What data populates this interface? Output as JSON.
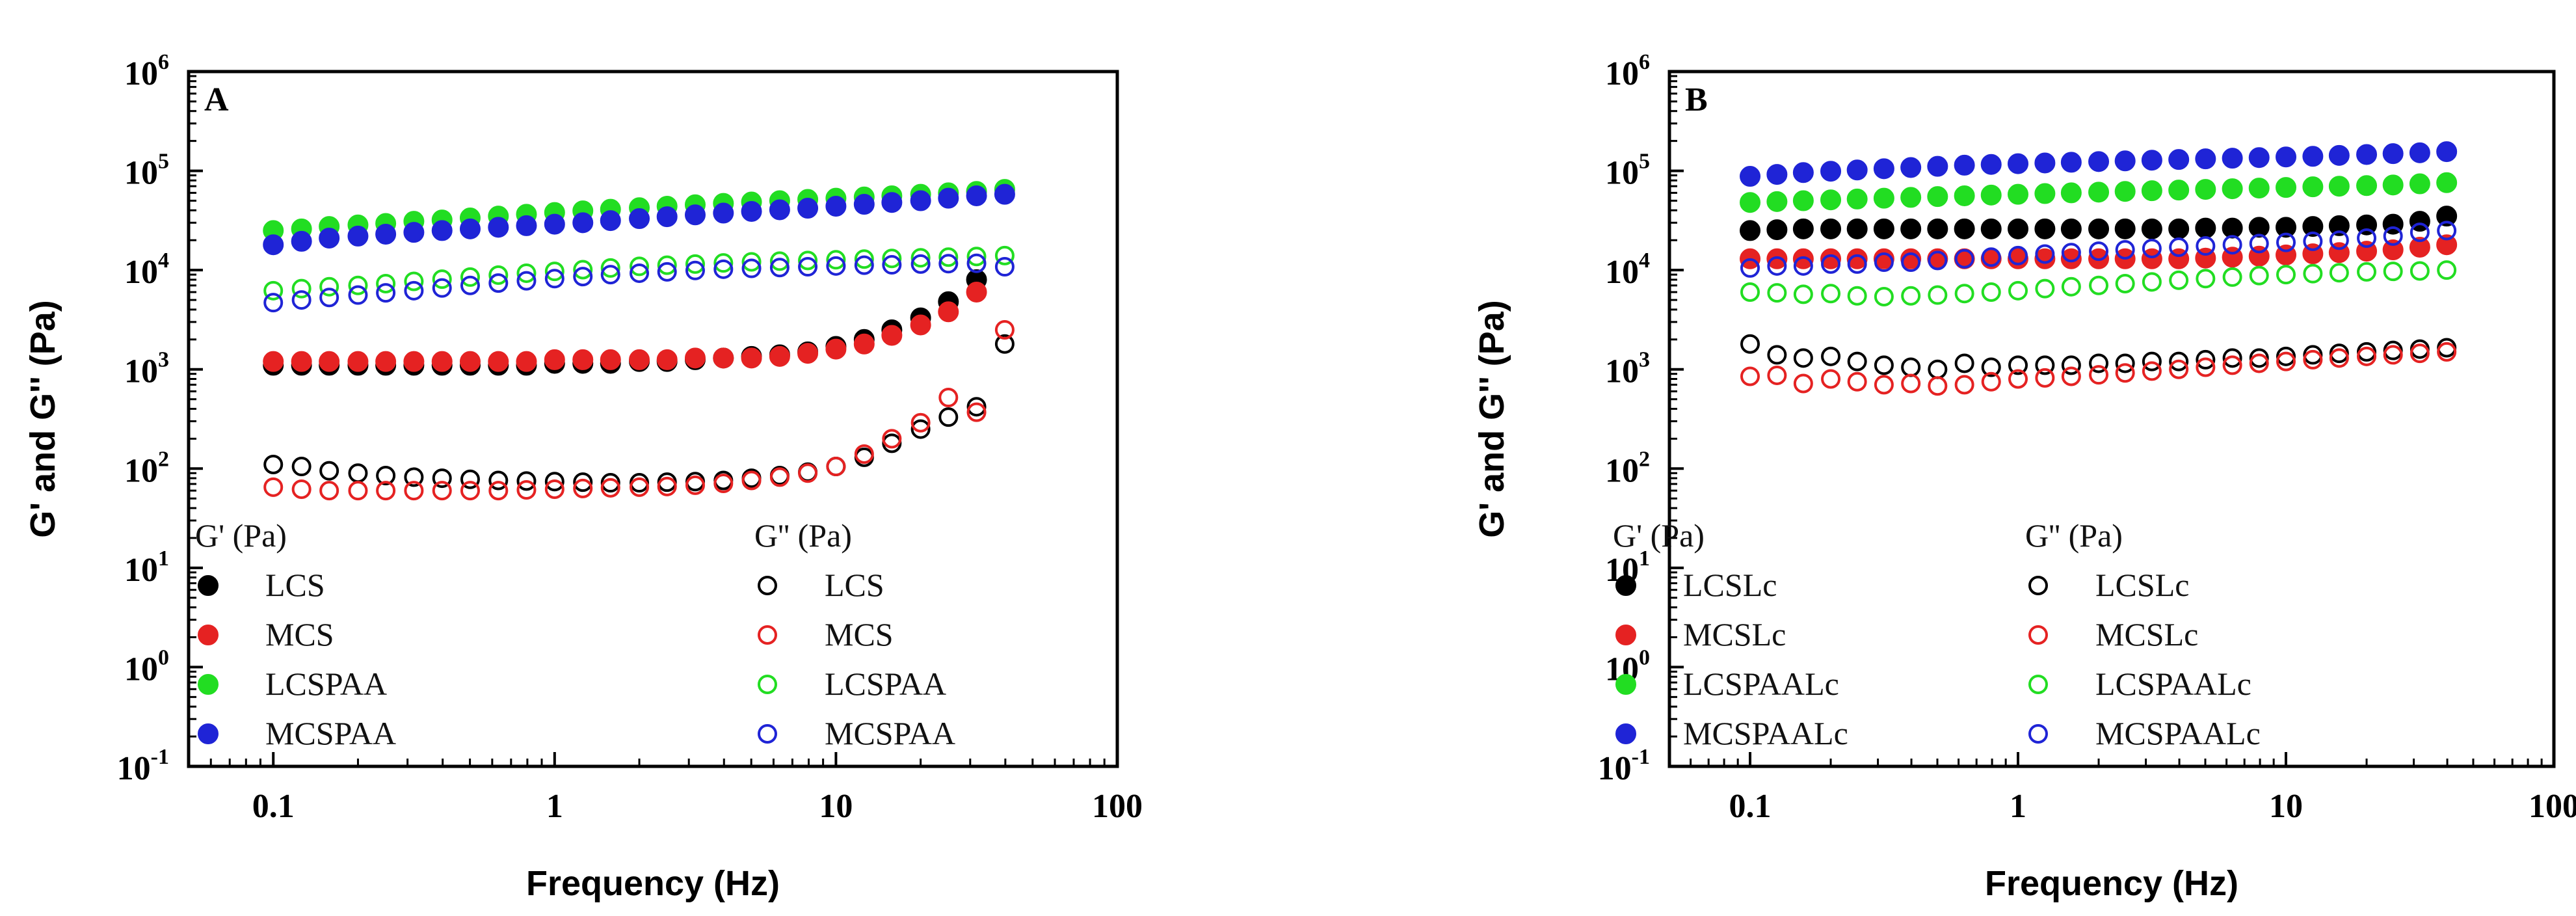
{
  "chart_data": [
    {
      "type": "scatter",
      "panel_label": "A",
      "xlabel": "Frequency (Hz)",
      "ylabel": "G' and G'' (Pa)",
      "xscale": "log",
      "yscale": "log",
      "xlim": [
        0.05,
        100
      ],
      "ylim": [
        0.1,
        1000000
      ],
      "x_ticks": [
        "0.1",
        "1",
        "10",
        "100"
      ],
      "y_ticks": [
        {
          "base": "10",
          "exp": "-1"
        },
        {
          "base": "10",
          "exp": "0"
        },
        {
          "base": "10",
          "exp": "1"
        },
        {
          "base": "10",
          "exp": "2"
        },
        {
          "base": "10",
          "exp": "3"
        },
        {
          "base": "10",
          "exp": "4"
        },
        {
          "base": "10",
          "exp": "5"
        },
        {
          "base": "10",
          "exp": "6"
        }
      ],
      "legend": {
        "position": "bottom-left",
        "header_filled": "G' (Pa)",
        "header_open": "G'' (Pa)"
      },
      "x": [
        0.1,
        0.126,
        0.158,
        0.2,
        0.251,
        0.316,
        0.398,
        0.501,
        0.631,
        0.794,
        1,
        1.26,
        1.58,
        2,
        2.51,
        3.16,
        3.98,
        5.01,
        6.31,
        7.94,
        10,
        12.6,
        15.8,
        20,
        25.1,
        31.6,
        39.8
      ],
      "series": [
        {
          "name": "LCS",
          "modulus": "G'",
          "filled": true,
          "color": "#000000",
          "values": [
            1100,
            1100,
            1100,
            1100,
            1100,
            1100,
            1100,
            1100,
            1100,
            1100,
            1150,
            1150,
            1150,
            1200,
            1200,
            1250,
            1300,
            1350,
            1400,
            1500,
            1700,
            2000,
            2500,
            3300,
            4800,
            8000,
            null
          ]
        },
        {
          "name": "MCS",
          "modulus": "G'",
          "filled": true,
          "color": "#e52222",
          "values": [
            1200,
            1200,
            1200,
            1200,
            1200,
            1200,
            1200,
            1200,
            1200,
            1200,
            1250,
            1250,
            1250,
            1250,
            1250,
            1300,
            1300,
            1300,
            1350,
            1450,
            1600,
            1800,
            2200,
            2800,
            3800,
            6000,
            null
          ]
        },
        {
          "name": "LCSPAA",
          "modulus": "G'",
          "filled": true,
          "color": "#22dd22",
          "values": [
            25000,
            26000,
            27500,
            28500,
            29500,
            31000,
            32000,
            33500,
            35000,
            36500,
            38000,
            39500,
            41000,
            42500,
            44000,
            45500,
            47000,
            48500,
            50000,
            51500,
            53000,
            54500,
            56000,
            58000,
            60000,
            62000,
            65000
          ]
        },
        {
          "name": "MCSPAA",
          "modulus": "G'",
          "filled": true,
          "color": "#1f24d6",
          "values": [
            18000,
            19500,
            21000,
            22000,
            23000,
            24000,
            25000,
            26000,
            27000,
            28000,
            29000,
            30000,
            31500,
            33000,
            34500,
            36000,
            37500,
            39000,
            40500,
            42000,
            44000,
            46000,
            48000,
            50000,
            53000,
            56000,
            58000
          ]
        },
        {
          "name": "LCS",
          "modulus": "G''",
          "filled": false,
          "color": "#000000",
          "values": [
            110,
            105,
            95,
            90,
            85,
            82,
            80,
            78,
            76,
            75,
            74,
            73,
            72,
            72,
            73,
            74,
            76,
            80,
            85,
            92,
            105,
            130,
            180,
            250,
            330,
            420,
            1800
          ]
        },
        {
          "name": "MCS",
          "modulus": "G''",
          "filled": false,
          "color": "#e52222",
          "values": [
            65,
            62,
            60,
            60,
            60,
            60,
            60,
            60,
            60,
            61,
            62,
            63,
            64,
            65,
            66,
            68,
            71,
            76,
            82,
            90,
            105,
            140,
            200,
            290,
            520,
            370,
            2500
          ]
        },
        {
          "name": "LCSPAA",
          "modulus": "G''",
          "filled": false,
          "color": "#22dd22",
          "values": [
            6200,
            6500,
            6800,
            7000,
            7300,
            7700,
            8100,
            8500,
            8900,
            9300,
            9700,
            10100,
            10500,
            10900,
            11200,
            11500,
            11800,
            12100,
            12300,
            12500,
            12700,
            12900,
            13100,
            13300,
            13500,
            13700,
            14000
          ]
        },
        {
          "name": "MCSPAA",
          "modulus": "G''",
          "filled": false,
          "color": "#1f24d6",
          "values": [
            4700,
            5000,
            5300,
            5600,
            5900,
            6200,
            6600,
            7000,
            7400,
            7800,
            8200,
            8600,
            9000,
            9300,
            9600,
            9900,
            10200,
            10400,
            10600,
            10800,
            11000,
            11200,
            11300,
            11500,
            11600,
            11700,
            10800
          ]
        }
      ]
    },
    {
      "type": "scatter",
      "panel_label": "B",
      "xlabel": "Frequency (Hz)",
      "ylabel": "G' and G'' (Pa)",
      "xscale": "log",
      "yscale": "log",
      "xlim": [
        0.05,
        100
      ],
      "ylim": [
        0.1,
        1000000
      ],
      "x_ticks": [
        "0.1",
        "1",
        "10",
        "100"
      ],
      "y_ticks": [
        {
          "base": "10",
          "exp": "-1"
        },
        {
          "base": "10",
          "exp": "0"
        },
        {
          "base": "10",
          "exp": "1"
        },
        {
          "base": "10",
          "exp": "2"
        },
        {
          "base": "10",
          "exp": "3"
        },
        {
          "base": "10",
          "exp": "4"
        },
        {
          "base": "10",
          "exp": "5"
        },
        {
          "base": "10",
          "exp": "6"
        }
      ],
      "legend": {
        "position": "bottom-left",
        "header_filled": "G' (Pa)",
        "header_open": "G'' (Pa)"
      },
      "x": [
        0.1,
        0.126,
        0.158,
        0.2,
        0.251,
        0.316,
        0.398,
        0.501,
        0.631,
        0.794,
        1,
        1.26,
        1.58,
        2,
        2.51,
        3.16,
        3.98,
        5.01,
        6.31,
        7.94,
        10,
        12.6,
        15.8,
        20,
        25.1,
        31.6,
        39.8
      ],
      "series": [
        {
          "name": "LCSLc",
          "modulus": "G'",
          "filled": true,
          "color": "#000000",
          "values": [
            25000,
            25500,
            26000,
            26000,
            26000,
            26000,
            26000,
            26000,
            26000,
            26000,
            26000,
            26000,
            26000,
            26000,
            26000,
            26000,
            26000,
            26500,
            26500,
            27000,
            27000,
            27500,
            28000,
            28500,
            29000,
            31000,
            35000
          ]
        },
        {
          "name": "MCSLc",
          "modulus": "G'",
          "filled": true,
          "color": "#e52222",
          "values": [
            13000,
            13000,
            13000,
            13000,
            13000,
            13000,
            13000,
            13000,
            13000,
            13000,
            13000,
            13000,
            13000,
            13000,
            13000,
            13000,
            13000,
            13200,
            13500,
            13800,
            14200,
            14600,
            15000,
            15500,
            16000,
            17000,
            18000
          ]
        },
        {
          "name": "LCSPAALc",
          "modulus": "G'",
          "filled": true,
          "color": "#22dd22",
          "values": [
            48000,
            49000,
            50000,
            51000,
            52000,
            53000,
            54000,
            55000,
            56000,
            57000,
            58000,
            59000,
            60000,
            61000,
            62000,
            63000,
            64000,
            65000,
            66000,
            67000,
            68000,
            69000,
            70000,
            71000,
            72000,
            74000,
            76000
          ]
        },
        {
          "name": "MCSPAALc",
          "modulus": "G'",
          "filled": true,
          "color": "#1f24d6",
          "values": [
            88000,
            92000,
            96000,
            99000,
            102000,
            105000,
            108000,
            111000,
            114000,
            116000,
            118000,
            120000,
            122000,
            124000,
            126000,
            128000,
            130000,
            132000,
            134000,
            136000,
            138000,
            140000,
            143000,
            146000,
            149000,
            152000,
            156000
          ]
        },
        {
          "name": "LCSLc",
          "modulus": "G''",
          "filled": false,
          "color": "#000000",
          "values": [
            1800,
            1400,
            1300,
            1350,
            1200,
            1100,
            1050,
            1000,
            1150,
            1050,
            1100,
            1100,
            1100,
            1150,
            1150,
            1200,
            1200,
            1250,
            1300,
            1300,
            1350,
            1400,
            1450,
            1500,
            1550,
            1600,
            1650
          ]
        },
        {
          "name": "MCSLc",
          "modulus": "G''",
          "filled": false,
          "color": "#e52222",
          "values": [
            850,
            870,
            720,
            800,
            750,
            700,
            720,
            680,
            700,
            750,
            800,
            820,
            850,
            880,
            920,
            960,
            1000,
            1050,
            1100,
            1150,
            1200,
            1250,
            1300,
            1350,
            1400,
            1450,
            1500
          ]
        },
        {
          "name": "LCSPAALc",
          "modulus": "G''",
          "filled": false,
          "color": "#22dd22",
          "values": [
            6000,
            5900,
            5700,
            5800,
            5500,
            5400,
            5500,
            5600,
            5800,
            6000,
            6200,
            6500,
            6800,
            7000,
            7300,
            7600,
            7900,
            8200,
            8500,
            8800,
            9000,
            9200,
            9400,
            9600,
            9700,
            9800,
            10000
          ]
        },
        {
          "name": "MCSPAALc",
          "modulus": "G''",
          "filled": false,
          "color": "#1f24d6",
          "values": [
            10500,
            11000,
            11000,
            11500,
            11500,
            12000,
            12000,
            12500,
            13000,
            13500,
            14000,
            14500,
            15000,
            15500,
            16000,
            16500,
            17000,
            17500,
            18000,
            18500,
            19000,
            19500,
            20000,
            21000,
            22000,
            24000,
            25000
          ]
        }
      ]
    }
  ]
}
